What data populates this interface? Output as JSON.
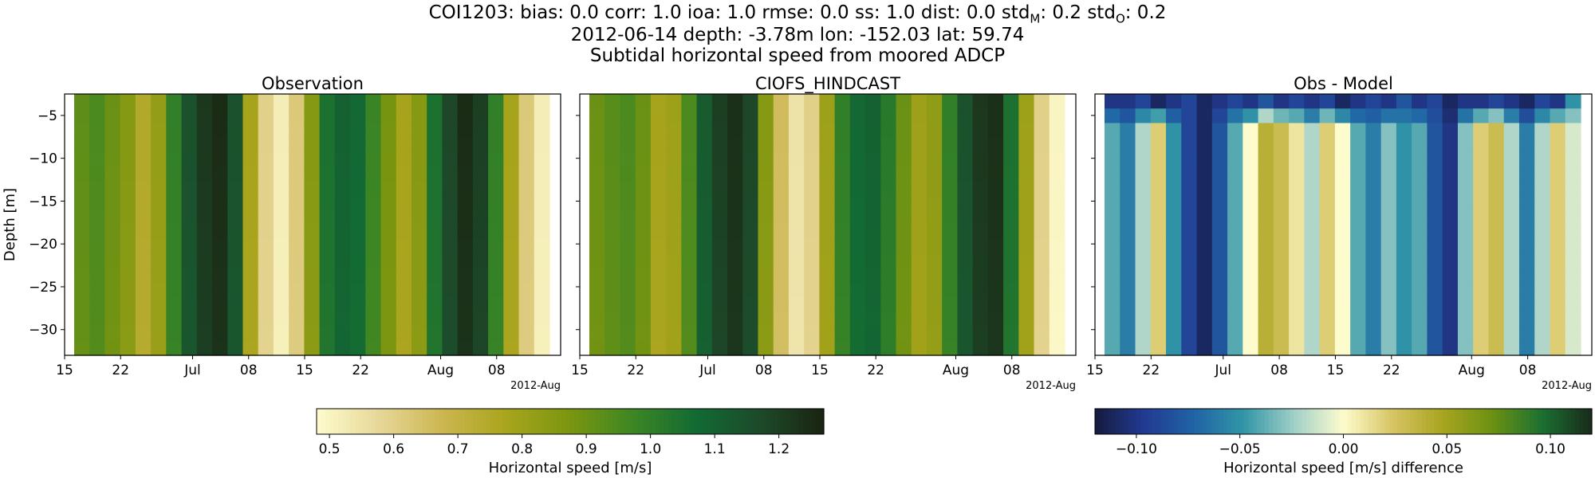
{
  "title": {
    "station_stats_prefix": "COI1203: bias: 0.0  corr: 1.0  ioa: 1.0  rmse: 0.0  ss: 1.0  dist: 0.0  std",
    "std_m_sub": "M",
    "std_m_value": ": 0.2  std",
    "std_o_sub": "O",
    "std_o_value": ": 0.2",
    "line2": "2012-06-14 depth: -3.78m lon: -152.03 lat: 59.74",
    "line3": "Subtidal horizontal speed from moored ADCP"
  },
  "chart_data": [
    {
      "type": "heatmap",
      "title": "Observation",
      "ylabel": "Depth [m]",
      "ylim": [
        -33,
        -2.5
      ],
      "yticks": [
        -5,
        -10,
        -15,
        -20,
        -25,
        -30
      ],
      "xlim": [
        "2012-06-15",
        "2012-08-16"
      ],
      "xticks": [
        {
          "date": "2012-06-15",
          "label": "15"
        },
        {
          "date": "2012-06-22",
          "label": "22"
        },
        {
          "date": "2012-07-01",
          "label": "Jul"
        },
        {
          "date": "2012-07-08",
          "label": "08"
        },
        {
          "date": "2012-07-15",
          "label": "15"
        },
        {
          "date": "2012-07-22",
          "label": "22"
        },
        {
          "date": "2012-08-01",
          "label": "Aug"
        },
        {
          "date": "2012-08-08",
          "label": "08"
        }
      ],
      "xoffset_label": "2012-Aug",
      "colormap": "speed",
      "clim": [
        0.48,
        1.27
      ],
      "dates": [
        "2012-06-16",
        "2012-06-18",
        "2012-06-20",
        "2012-06-22",
        "2012-06-24",
        "2012-06-26",
        "2012-06-28",
        "2012-06-30",
        "2012-07-02",
        "2012-07-04",
        "2012-07-06",
        "2012-07-08",
        "2012-07-10",
        "2012-07-12",
        "2012-07-14",
        "2012-07-16",
        "2012-07-18",
        "2012-07-20",
        "2012-07-22",
        "2012-07-24",
        "2012-07-26",
        "2012-07-28",
        "2012-07-30",
        "2012-08-01",
        "2012-08-03",
        "2012-08-05",
        "2012-08-07",
        "2012-08-09",
        "2012-08-11",
        "2012-08-13",
        "2012-08-15"
      ],
      "values": [
        0.92,
        0.95,
        0.9,
        0.85,
        0.75,
        0.82,
        1.0,
        1.15,
        1.22,
        1.25,
        1.15,
        0.78,
        0.6,
        0.52,
        0.62,
        0.85,
        1.05,
        1.1,
        1.08,
        0.98,
        0.88,
        0.78,
        0.85,
        1.05,
        1.18,
        1.25,
        1.2,
        1.0,
        0.78,
        0.62,
        0.52
      ]
    },
    {
      "type": "heatmap",
      "title": "CIOFS_HINDCAST",
      "ylim": [
        -33,
        -2.5
      ],
      "yticks": [
        -5,
        -10,
        -15,
        -20,
        -25,
        -30
      ],
      "xlim": [
        "2012-06-15",
        "2012-08-16"
      ],
      "xticks": [
        {
          "date": "2012-06-15",
          "label": "15"
        },
        {
          "date": "2012-06-22",
          "label": "22"
        },
        {
          "date": "2012-07-01",
          "label": "Jul"
        },
        {
          "date": "2012-07-08",
          "label": "08"
        },
        {
          "date": "2012-07-15",
          "label": "15"
        },
        {
          "date": "2012-07-22",
          "label": "22"
        },
        {
          "date": "2012-08-01",
          "label": "Aug"
        },
        {
          "date": "2012-08-08",
          "label": "08"
        }
      ],
      "xoffset_label": "2012-Aug",
      "colormap": "speed",
      "clim": [
        0.48,
        1.27
      ],
      "dates": [
        "2012-06-16",
        "2012-06-18",
        "2012-06-20",
        "2012-06-22",
        "2012-06-24",
        "2012-06-26",
        "2012-06-28",
        "2012-06-30",
        "2012-07-02",
        "2012-07-04",
        "2012-07-06",
        "2012-07-08",
        "2012-07-10",
        "2012-07-12",
        "2012-07-14",
        "2012-07-16",
        "2012-07-18",
        "2012-07-20",
        "2012-07-22",
        "2012-07-24",
        "2012-07-26",
        "2012-07-28",
        "2012-07-30",
        "2012-08-01",
        "2012-08-03",
        "2012-08-05",
        "2012-08-07",
        "2012-08-09",
        "2012-08-11",
        "2012-08-13",
        "2012-08-15"
      ],
      "values": [
        0.9,
        0.93,
        0.95,
        0.9,
        0.78,
        0.8,
        0.95,
        1.12,
        1.2,
        1.24,
        1.18,
        0.85,
        0.66,
        0.55,
        0.6,
        0.8,
        1.0,
        1.08,
        1.1,
        1.02,
        0.9,
        0.8,
        0.83,
        1.0,
        1.15,
        1.22,
        1.24,
        1.05,
        0.8,
        0.6,
        0.5
      ]
    },
    {
      "type": "heatmap",
      "title": "Obs - Model",
      "ylim": [
        -33,
        -2.5
      ],
      "yticks": [
        -5,
        -10,
        -15,
        -20,
        -25,
        -30
      ],
      "xlim": [
        "2012-06-15",
        "2012-08-16"
      ],
      "xticks": [
        {
          "date": "2012-06-15",
          "label": "15"
        },
        {
          "date": "2012-06-22",
          "label": "22"
        },
        {
          "date": "2012-07-01",
          "label": "Jul"
        },
        {
          "date": "2012-07-08",
          "label": "08"
        },
        {
          "date": "2012-07-15",
          "label": "15"
        },
        {
          "date": "2012-07-22",
          "label": "22"
        },
        {
          "date": "2012-08-01",
          "label": "Aug"
        },
        {
          "date": "2012-08-08",
          "label": "08"
        }
      ],
      "xoffset_label": "2012-Aug",
      "colormap": "diff",
      "clim": [
        -0.12,
        0.12
      ],
      "dates": [
        "2012-06-16",
        "2012-06-18",
        "2012-06-20",
        "2012-06-22",
        "2012-06-24",
        "2012-06-26",
        "2012-06-28",
        "2012-06-30",
        "2012-07-02",
        "2012-07-04",
        "2012-07-06",
        "2012-07-08",
        "2012-07-10",
        "2012-07-12",
        "2012-07-14",
        "2012-07-16",
        "2012-07-18",
        "2012-07-20",
        "2012-07-22",
        "2012-07-24",
        "2012-07-26",
        "2012-07-28",
        "2012-07-30",
        "2012-08-01",
        "2012-08-03",
        "2012-08-05",
        "2012-08-07",
        "2012-08-09",
        "2012-08-11",
        "2012-08-13",
        "2012-08-15"
      ],
      "values": [
        -0.04,
        -0.06,
        -0.02,
        0.02,
        -0.05,
        -0.09,
        -0.11,
        -0.08,
        -0.04,
        0.0,
        0.04,
        0.03,
        0.01,
        -0.02,
        0.02,
        0.0,
        -0.04,
        -0.06,
        -0.03,
        -0.05,
        -0.04,
        -0.08,
        -0.1,
        -0.03,
        0.02,
        0.03,
        -0.02,
        -0.06,
        -0.02,
        0.02,
        -0.01
      ],
      "surface_values": [
        -0.1,
        -0.1,
        -0.09,
        -0.11,
        -0.1,
        -0.09,
        -0.11,
        -0.1,
        -0.09,
        -0.1,
        -0.08,
        -0.1,
        -0.09,
        -0.1,
        -0.09,
        -0.11,
        -0.1,
        -0.09,
        -0.1,
        -0.08,
        -0.1,
        -0.09,
        -0.11,
        -0.1,
        -0.1,
        -0.09,
        -0.1,
        -0.11,
        -0.09,
        -0.1,
        -0.05
      ]
    }
  ],
  "colorbars": [
    {
      "label": "Horizontal speed [m/s]",
      "colormap": "speed",
      "clim": [
        0.48,
        1.27
      ],
      "ticks": [
        {
          "value": 0.5,
          "label": "0.5"
        },
        {
          "value": 0.6,
          "label": "0.6"
        },
        {
          "value": 0.7,
          "label": "0.7"
        },
        {
          "value": 0.8,
          "label": "0.8"
        },
        {
          "value": 0.9,
          "label": "0.9"
        },
        {
          "value": 1.0,
          "label": "1.0"
        },
        {
          "value": 1.1,
          "label": "1.1"
        },
        {
          "value": 1.2,
          "label": "1.2"
        }
      ]
    },
    {
      "label": "Horizontal speed [m/s] difference",
      "colormap": "diff",
      "clim": [
        -0.12,
        0.12
      ],
      "ticks": [
        {
          "value": -0.1,
          "label": "−0.10"
        },
        {
          "value": -0.05,
          "label": "−0.05"
        },
        {
          "value": 0.0,
          "label": "0.00"
        },
        {
          "value": 0.05,
          "label": "0.05"
        },
        {
          "value": 0.1,
          "label": "0.10"
        }
      ]
    }
  ],
  "colormaps": {
    "speed": [
      "#fefccd",
      "#e6d798",
      "#cbb64f",
      "#a8a41c",
      "#7a9510",
      "#3c8624",
      "#126a34",
      "#1d4a2a",
      "#1a2410"
    ],
    "diff": [
      "#151b3e",
      "#223a92",
      "#2064a6",
      "#3296a6",
      "#a0cfc8",
      "#fefccd",
      "#d6c462",
      "#a8a420",
      "#6b9112",
      "#1c7032",
      "#182a1a"
    ]
  }
}
